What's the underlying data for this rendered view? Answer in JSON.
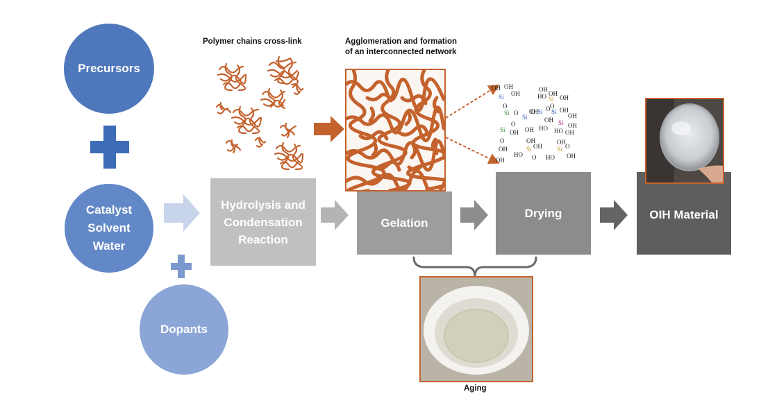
{
  "inputs": {
    "precursors": "Precursors",
    "catalyst_lines": [
      "Catalyst",
      "Solvent",
      "Water"
    ],
    "dopants": "Dopants"
  },
  "process": {
    "hydrolysis_lines": [
      "Hydrolysis and",
      "Condensation",
      "Reaction"
    ],
    "gelation": "Gelation",
    "drying": "Drying",
    "oih": "OIH Material"
  },
  "captions": {
    "polymer": "Polymer chains cross-link",
    "agglomeration_lines": [
      "Agglomeration and formation",
      "of an interconnected network"
    ],
    "aging": "Aging"
  },
  "chemistry": {
    "si": "Si",
    "oh": "OH",
    "ho": "HO",
    "o": "O"
  },
  "colors": {
    "precursor_circle": "#4f77bb",
    "catalyst_circle": "#6388c8",
    "dopant_circle": "#8ba6d6",
    "plus_dark": "#3e6cb8",
    "plus_light": "#7b98cf",
    "light_arrow": "#c8d4ea",
    "hydrolysis_box": "#c0c0c0",
    "gelation_box": "#9d9d9d",
    "drying_box": "#8c8c8c",
    "oih_box": "#5e5e5e",
    "polymer": "#c4622d"
  }
}
